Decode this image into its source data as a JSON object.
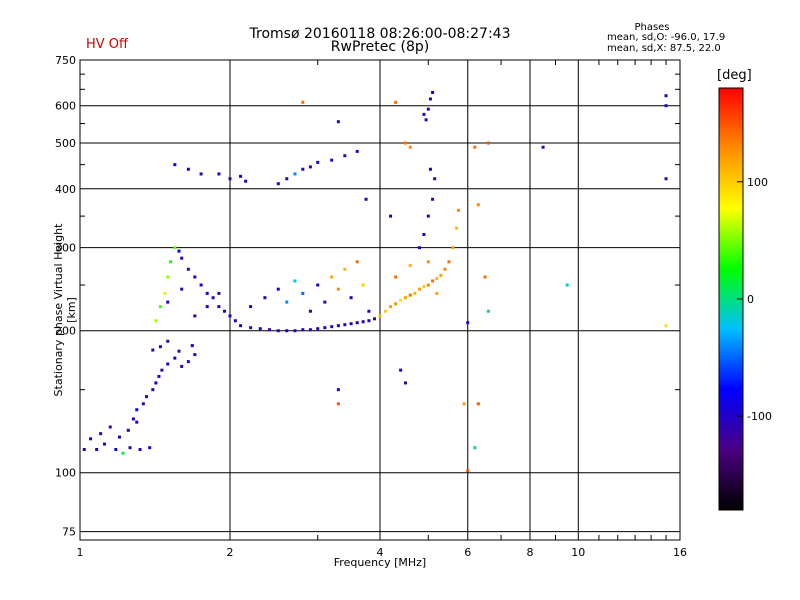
{
  "header": {
    "title_line1": "Tromsø 20160118 08:26:00-08:27:43",
    "title_line2": "RwPretec (8p)",
    "hv_status": "HV Off",
    "hv_color": "#d00000",
    "phase_title": "Phases",
    "phase_line1": "mean, sd,O: -96.0, 17.9",
    "phase_line2": "mean, sd,X: 87.5, 22.0"
  },
  "colorbar": {
    "unit_label": "[deg]",
    "ticks": [
      "100",
      "0",
      "-100"
    ],
    "tick_values": [
      100,
      0,
      -100
    ],
    "range": [
      -180,
      180
    ],
    "colors": [
      "#000000",
      "#4b0082",
      "#0000ff",
      "#00bfff",
      "#00ff00",
      "#ffff00",
      "#ff8c00",
      "#ff0000"
    ]
  },
  "chart_data": {
    "type": "scatter",
    "title": "Tromsø 20160118 08:26:00-08:27:43",
    "subtitle": "RwPretec (8p)",
    "xlabel": "Frequency [MHz]",
    "ylabel": "Stationary phase Virtual Height [km]",
    "x_scale": "log",
    "y_scale": "log",
    "xlim": [
      1,
      16
    ],
    "ylim": [
      72,
      750
    ],
    "x_ticks": [
      1,
      2,
      4,
      6,
      8,
      10,
      16
    ],
    "x_tick_labels": [
      "1",
      "2",
      "4",
      "6",
      "8",
      "10",
      "16"
    ],
    "y_ticks": [
      75,
      100,
      200,
      300,
      400,
      500,
      600,
      750
    ],
    "y_tick_labels": [
      "75",
      "100",
      "200",
      "300",
      "400",
      "500",
      "600",
      "750"
    ],
    "grid": true,
    "color_by": "phase_deg",
    "series": [
      {
        "points": [
          [
            1.02,
            112,
            -110
          ],
          [
            1.08,
            112,
            -100
          ],
          [
            1.12,
            115,
            -105
          ],
          [
            1.18,
            112,
            -95
          ],
          [
            1.22,
            110,
            10
          ],
          [
            1.26,
            113,
            -110
          ],
          [
            1.32,
            112,
            -100
          ],
          [
            1.38,
            113,
            -95
          ],
          [
            1.1,
            121,
            -100
          ],
          [
            1.15,
            125,
            -120
          ],
          [
            1.2,
            119,
            -110
          ],
          [
            1.25,
            123,
            -95
          ],
          [
            1.3,
            128,
            -100
          ],
          [
            1.05,
            118,
            -90
          ]
        ]
      },
      {
        "points": [
          [
            1.28,
            130,
            -90
          ],
          [
            1.3,
            136,
            -80
          ],
          [
            1.34,
            140,
            -100
          ],
          [
            1.36,
            145,
            -110
          ],
          [
            1.4,
            150,
            -100
          ],
          [
            1.42,
            155,
            -95
          ],
          [
            1.44,
            160,
            -105
          ],
          [
            1.46,
            165,
            -110
          ],
          [
            1.5,
            170,
            -100
          ],
          [
            1.55,
            175,
            -95
          ],
          [
            1.6,
            168,
            -115
          ],
          [
            1.65,
            172,
            -100
          ],
          [
            1.7,
            178,
            -105
          ],
          [
            1.4,
            182,
            -110
          ],
          [
            1.45,
            185,
            -100
          ],
          [
            1.5,
            190,
            -110
          ],
          [
            1.58,
            181,
            -105
          ],
          [
            1.68,
            186,
            -95
          ]
        ]
      },
      {
        "points": [
          [
            1.42,
            210,
            60
          ],
          [
            1.45,
            225,
            40
          ],
          [
            1.48,
            240,
            70
          ],
          [
            1.5,
            260,
            55
          ],
          [
            1.52,
            280,
            30
          ],
          [
            1.55,
            300,
            45
          ],
          [
            1.58,
            295,
            -80
          ],
          [
            1.6,
            285,
            -100
          ],
          [
            1.65,
            270,
            -110
          ],
          [
            1.7,
            260,
            -100
          ],
          [
            1.75,
            250,
            -95
          ],
          [
            1.8,
            240,
            -110
          ],
          [
            1.85,
            235,
            -105
          ],
          [
            1.9,
            225,
            -100
          ],
          [
            1.95,
            220,
            -110
          ],
          [
            2.0,
            215,
            -100
          ],
          [
            2.05,
            210,
            -95
          ],
          [
            1.5,
            230,
            -100
          ],
          [
            1.6,
            245,
            -110
          ],
          [
            1.7,
            215,
            -120
          ],
          [
            1.8,
            225,
            -100
          ],
          [
            1.9,
            240,
            -105
          ]
        ]
      },
      {
        "points": [
          [
            2.1,
            205,
            -110
          ],
          [
            2.2,
            203,
            -105
          ],
          [
            2.3,
            202,
            -100
          ],
          [
            2.4,
            201,
            -110
          ],
          [
            2.5,
            200,
            -115
          ],
          [
            2.6,
            200,
            -100
          ],
          [
            2.7,
            200,
            -110
          ],
          [
            2.8,
            201,
            -105
          ],
          [
            2.9,
            201,
            -95
          ],
          [
            3.0,
            202,
            -110
          ],
          [
            3.1,
            203,
            -100
          ],
          [
            3.2,
            204,
            -110
          ],
          [
            3.3,
            205,
            -105
          ],
          [
            3.4,
            206,
            -100
          ],
          [
            3.5,
            207,
            -110
          ],
          [
            3.6,
            208,
            -95
          ],
          [
            3.7,
            209,
            -110
          ],
          [
            3.8,
            210,
            -100
          ],
          [
            3.9,
            212,
            -105
          ]
        ]
      },
      {
        "points": [
          [
            2.2,
            225,
            -100
          ],
          [
            2.35,
            235,
            -110
          ],
          [
            2.5,
            245,
            -100
          ],
          [
            2.6,
            230,
            -40
          ],
          [
            2.7,
            255,
            -20
          ],
          [
            2.8,
            240,
            -50
          ],
          [
            2.9,
            220,
            -110
          ],
          [
            3.0,
            250,
            -100
          ],
          [
            3.1,
            230,
            -105
          ],
          [
            3.2,
            260,
            120
          ],
          [
            3.3,
            245,
            130
          ],
          [
            3.4,
            270,
            110
          ],
          [
            3.5,
            235,
            -100
          ],
          [
            3.6,
            280,
            140
          ],
          [
            3.7,
            250,
            100
          ],
          [
            3.8,
            220,
            -100
          ]
        ]
      },
      {
        "points": [
          [
            4.0,
            215,
            110
          ],
          [
            4.1,
            220,
            100
          ],
          [
            4.2,
            225,
            120
          ],
          [
            4.3,
            228,
            130
          ],
          [
            4.4,
            232,
            90
          ],
          [
            4.5,
            235,
            120
          ],
          [
            4.6,
            238,
            140
          ],
          [
            4.7,
            240,
            110
          ],
          [
            4.8,
            245,
            120
          ],
          [
            4.9,
            248,
            100
          ],
          [
            5.0,
            250,
            130
          ],
          [
            5.1,
            255,
            140
          ],
          [
            5.2,
            258,
            110
          ],
          [
            5.3,
            262,
            120
          ],
          [
            5.4,
            270,
            130
          ],
          [
            5.5,
            280,
            140
          ],
          [
            5.6,
            300,
            120
          ],
          [
            5.7,
            330,
            110
          ],
          [
            5.75,
            360,
            130
          ],
          [
            4.3,
            260,
            140
          ],
          [
            4.6,
            275,
            110
          ],
          [
            5.0,
            280,
            130
          ],
          [
            5.2,
            240,
            120
          ]
        ]
      },
      {
        "points": [
          [
            4.8,
            300,
            -100
          ],
          [
            4.9,
            320,
            -110
          ],
          [
            5.0,
            350,
            -100
          ],
          [
            5.1,
            380,
            -105
          ],
          [
            5.15,
            420,
            -110
          ],
          [
            5.05,
            440,
            -100
          ],
          [
            4.95,
            560,
            -110
          ],
          [
            5.0,
            590,
            -100
          ],
          [
            5.05,
            620,
            -105
          ],
          [
            5.1,
            640,
            -110
          ],
          [
            4.9,
            575,
            -100
          ]
        ]
      },
      {
        "points": [
          [
            1.55,
            450,
            -80
          ],
          [
            1.65,
            440,
            -100
          ],
          [
            1.75,
            430,
            -110
          ],
          [
            1.9,
            430,
            -100
          ],
          [
            2.0,
            420,
            -110
          ],
          [
            2.1,
            425,
            -100
          ],
          [
            2.15,
            415,
            -105
          ],
          [
            2.5,
            410,
            -100
          ],
          [
            2.6,
            420,
            -110
          ],
          [
            2.7,
            430,
            -40
          ],
          [
            2.8,
            440,
            -100
          ],
          [
            2.9,
            445,
            -110
          ],
          [
            3.0,
            455,
            -90
          ],
          [
            3.2,
            460,
            -100
          ],
          [
            3.4,
            470,
            -110
          ],
          [
            3.6,
            480,
            -100
          ]
        ]
      },
      {
        "points": [
          [
            2.8,
            610,
            140
          ],
          [
            3.3,
            555,
            -110
          ],
          [
            4.3,
            610,
            140
          ],
          [
            4.5,
            500,
            140
          ],
          [
            4.6,
            490,
            130
          ],
          [
            6.2,
            490,
            140
          ],
          [
            6.6,
            500,
            150
          ],
          [
            8.5,
            490,
            -110
          ],
          [
            6.3,
            370,
            130
          ],
          [
            6.5,
            260,
            140
          ],
          [
            6.6,
            220,
            -10
          ],
          [
            6.0,
            208,
            -100
          ],
          [
            4.2,
            350,
            -100
          ],
          [
            4.4,
            165,
            -100
          ],
          [
            4.5,
            155,
            -110
          ],
          [
            3.3,
            150,
            -100
          ],
          [
            3.3,
            140,
            150
          ],
          [
            5.9,
            140,
            120
          ],
          [
            6.3,
            140,
            150
          ],
          [
            6.0,
            101,
            150
          ],
          [
            6.2,
            113,
            -10
          ],
          [
            9.5,
            250,
            -10
          ],
          [
            15,
            420,
            -110
          ],
          [
            15,
            600,
            -100
          ],
          [
            15,
            630,
            -105
          ],
          [
            15,
            205,
            90
          ],
          [
            3.75,
            380,
            -110
          ]
        ]
      }
    ]
  }
}
